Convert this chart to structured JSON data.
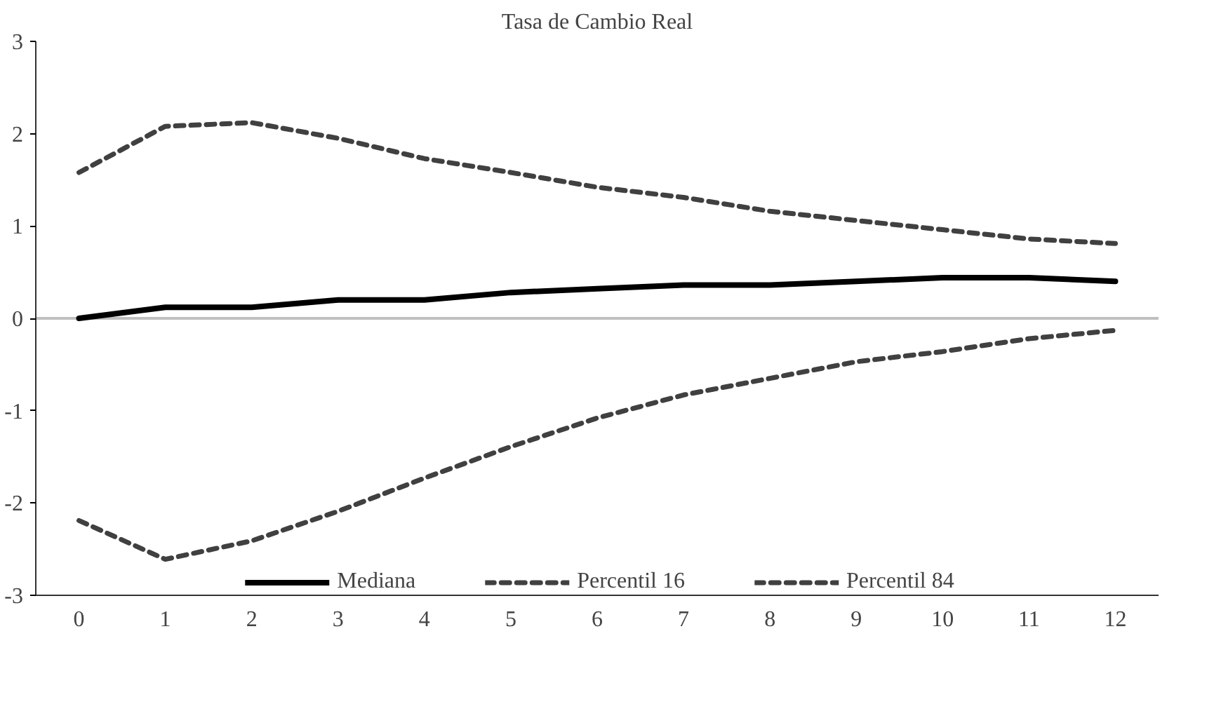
{
  "chart_data": {
    "type": "line",
    "title": "Tasa de Cambio Real",
    "x": [
      0,
      1,
      2,
      3,
      4,
      5,
      6,
      7,
      8,
      9,
      10,
      11,
      12
    ],
    "series": [
      {
        "name": "Mediana",
        "color": "#000000",
        "line_style": "solid",
        "values": [
          0.0,
          0.12,
          0.12,
          0.2,
          0.2,
          0.28,
          0.32,
          0.36,
          0.36,
          0.4,
          0.44,
          0.44,
          0.4
        ]
      },
      {
        "name": "Percentil 16",
        "color": "#404040",
        "line_style": "dashed",
        "values": [
          -2.19,
          -2.61,
          -2.41,
          -2.09,
          -1.73,
          -1.39,
          -1.08,
          -0.83,
          -0.65,
          -0.47,
          -0.36,
          -0.22,
          -0.13
        ]
      },
      {
        "name": "Percentil 84",
        "color": "#404040",
        "line_style": "dashed",
        "values": [
          1.58,
          2.08,
          2.12,
          1.95,
          1.73,
          1.58,
          1.42,
          1.31,
          1.16,
          1.06,
          0.96,
          0.86,
          0.81
        ]
      }
    ],
    "xlim": [
      -0.5,
      12.5
    ],
    "xticks": [
      0,
      1,
      2,
      3,
      4,
      5,
      6,
      7,
      8,
      9,
      10,
      11,
      12
    ],
    "ylim": [
      -3,
      3
    ],
    "yticks": [
      -3,
      -2,
      -1,
      0,
      1,
      2,
      3
    ],
    "ref_lines": [
      {
        "axis": "y",
        "value": 0,
        "color": "#bfbfbf",
        "line_style": "solid"
      }
    ],
    "grid": false,
    "legend": "bottom"
  }
}
